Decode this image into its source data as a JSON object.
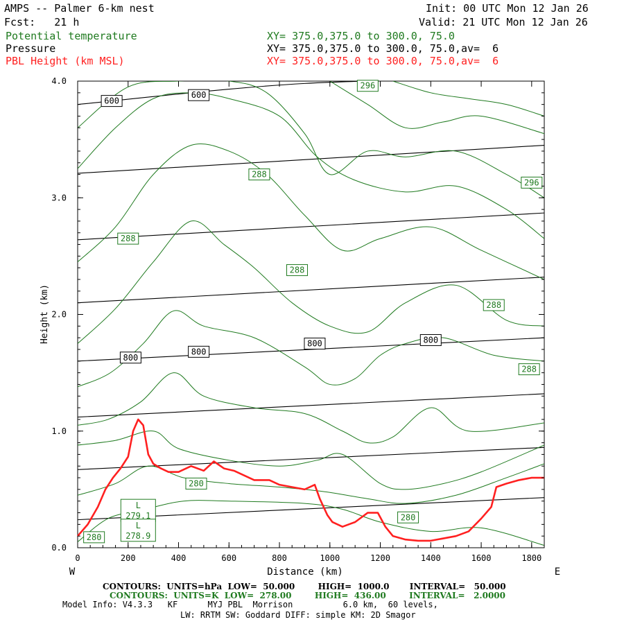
{
  "header": {
    "title": "AMPS -- Palmer 6-km nest",
    "init": "Init: 00 UTC Mon 12 Jan 26",
    "fcst": "Fcst:   21 h",
    "valid": "Valid: 21 UTC Mon 12 Jan 26",
    "field1_name": "Potential temperature",
    "field1_xy": "XY= 375.0,375.0 to 300.0, 75.0",
    "field2_name": "Pressure",
    "field2_xy": "XY= 375.0,375.0 to 300.0, 75.0,av=  6",
    "field3_name": "PBL Height (km MSL)",
    "field3_xy": "XY= 375.0,375.0 to 300.0, 75.0,av=  6"
  },
  "footer": {
    "contours_hpa": "CONTOURS:  UNITS=hPa  LOW=  50.000        HIGH=  1000.0       INTERVAL=   50.000",
    "contours_k": "CONTOURS:  UNITS=K  LOW=  278.00        HIGH=  436.00        INTERVAL=   2.0000",
    "model_info": "Model Info: V4.3.3   KF      MYJ PBL  Morrison          6.0 km,  60 levels,",
    "model_info2": "LW: RRTM SW: Goddard DIFF: simple KM: 2D Smagor"
  },
  "colors": {
    "theta": "#1f7a1f",
    "pressure": "#000000",
    "pbl": "#ff2020"
  },
  "chart_data": {
    "type": "line",
    "xlabel": "Distance (km)",
    "ylabel": "Height (km)",
    "xlim": [
      0,
      1850
    ],
    "ylim": [
      0,
      4
    ],
    "x_ticks": [
      "0",
      "200",
      "400",
      "600",
      "800",
      "1000",
      "1200",
      "1400",
      "1600",
      "1800"
    ],
    "y_ticks": [
      "0.0",
      "1.0",
      "2.0",
      "3.0",
      "4.0"
    ],
    "x_left_label": "W",
    "x_right_label": "E",
    "pressure_lines": [
      {
        "x": [
          0,
          1850
        ],
        "y": [
          0.24,
          0.43
        ]
      },
      {
        "x": [
          0,
          1850
        ],
        "y": [
          0.67,
          0.86
        ]
      },
      {
        "x": [
          0,
          1850
        ],
        "y": [
          1.12,
          1.32
        ]
      },
      {
        "x": [
          0,
          1850
        ],
        "y": [
          1.6,
          1.8
        ],
        "labels": [
          {
            "x": 210,
            "y": 1.63,
            "text": "800"
          },
          {
            "x": 480,
            "y": 1.68,
            "text": "800"
          },
          {
            "x": 940,
            "y": 1.75,
            "text": "800"
          },
          {
            "x": 1400,
            "y": 1.78,
            "text": "800"
          }
        ]
      },
      {
        "x": [
          0,
          1850
        ],
        "y": [
          2.1,
          2.32
        ]
      },
      {
        "x": [
          0,
          1850
        ],
        "y": [
          2.64,
          2.87
        ]
      },
      {
        "x": [
          0,
          1850
        ],
        "y": [
          3.21,
          3.45
        ]
      },
      {
        "x": [
          0,
          900,
          1850
        ],
        "y": [
          3.8,
          3.98,
          4.02
        ],
        "labels": [
          {
            "x": 135,
            "y": 3.83,
            "text": "600"
          },
          {
            "x": 480,
            "y": 3.88,
            "text": "600"
          }
        ]
      }
    ],
    "theta_lines": [
      {
        "x": [
          0,
          120,
          250,
          420,
          600,
          900,
          1050,
          1200,
          1400,
          1600,
          1850
        ],
        "y": [
          0.05,
          0.25,
          0.32,
          0.4,
          0.4,
          0.38,
          0.33,
          0.22,
          0.14,
          0.17,
          0.02
        ],
        "labels": [
          {
            "x": 65,
            "y": 0.09,
            "text": "280"
          },
          {
            "x": 1310,
            "y": 0.26,
            "text": "280"
          }
        ]
      },
      {
        "x": [
          0,
          150,
          280,
          420,
          600,
          800,
          980,
          1150,
          1300,
          1500,
          1700,
          1850
        ],
        "y": [
          0.45,
          0.55,
          0.7,
          0.6,
          0.55,
          0.52,
          0.48,
          0.42,
          0.38,
          0.45,
          0.6,
          0.72
        ],
        "labels": [
          {
            "x": 470,
            "y": 0.55,
            "text": "280"
          }
        ]
      },
      {
        "x": [
          0,
          150,
          300,
          400,
          600,
          800,
          950,
          1050,
          1200,
          1300,
          1450,
          1600,
          1850
        ],
        "y": [
          0.88,
          0.92,
          1.0,
          0.85,
          0.75,
          0.7,
          0.75,
          0.8,
          0.55,
          0.5,
          0.55,
          0.65,
          0.88
        ]
      },
      {
        "x": [
          0,
          120,
          250,
          380,
          500,
          700,
          900,
          1050,
          1150,
          1250,
          1400,
          1550,
          1850
        ],
        "y": [
          1.05,
          1.1,
          1.25,
          1.5,
          1.3,
          1.2,
          1.15,
          1.0,
          0.9,
          0.95,
          1.2,
          1.0,
          1.07
        ]
      },
      {
        "x": [
          0,
          130,
          260,
          380,
          500,
          700,
          900,
          1000,
          1100,
          1200,
          1300,
          1450,
          1650,
          1850
        ],
        "y": [
          1.38,
          1.5,
          1.75,
          2.03,
          1.9,
          1.8,
          1.55,
          1.4,
          1.45,
          1.65,
          1.75,
          1.8,
          1.65,
          1.6
        ]
      },
      {
        "x": [
          0,
          150,
          300,
          450,
          580,
          700,
          850,
          1000,
          1150,
          1300,
          1500,
          1700,
          1850
        ],
        "y": [
          1.75,
          2.05,
          2.45,
          2.8,
          2.6,
          2.4,
          2.1,
          1.9,
          1.85,
          2.1,
          2.25,
          1.95,
          1.9
        ],
        "labels": [
          {
            "x": 870,
            "y": 2.38,
            "text": "288"
          },
          {
            "x": 1650,
            "y": 2.08,
            "text": "288"
          },
          {
            "x": 1790,
            "y": 1.53,
            "text": "288"
          }
        ]
      },
      {
        "x": [
          0,
          150,
          300,
          450,
          600,
          750,
          900,
          1050,
          1200,
          1400,
          1600,
          1850
        ],
        "y": [
          2.45,
          2.75,
          3.2,
          3.45,
          3.4,
          3.2,
          2.85,
          2.55,
          2.65,
          2.75,
          2.55,
          2.3
        ],
        "labels": [
          {
            "x": 200,
            "y": 2.65,
            "text": "288"
          }
        ]
      },
      {
        "x": [
          0,
          150,
          300,
          450,
          600,
          800,
          950,
          1100,
          1300,
          1500,
          1700,
          1850
        ],
        "y": [
          3.25,
          3.6,
          3.85,
          3.9,
          3.85,
          3.7,
          3.35,
          3.15,
          3.05,
          3.1,
          2.9,
          2.65
        ]
      },
      {
        "x": [
          0,
          200,
          400,
          600,
          750,
          900,
          1000,
          1150,
          1300,
          1500,
          1700,
          1850
        ],
        "y": [
          3.6,
          3.95,
          4.0,
          4.0,
          3.9,
          3.55,
          3.2,
          3.4,
          3.35,
          3.4,
          3.2,
          3.0
        ],
        "labels": [
          {
            "x": 720,
            "y": 3.2,
            "text": "288"
          },
          {
            "x": 1800,
            "y": 3.13,
            "text": "296"
          }
        ]
      },
      {
        "x": [
          1000,
          1150,
          1300,
          1450,
          1600,
          1850
        ],
        "y": [
          4.0,
          3.8,
          3.6,
          3.65,
          3.7,
          3.55
        ]
      },
      {
        "x": [
          1250,
          1400,
          1550,
          1700,
          1850
        ],
        "y": [
          4.0,
          3.9,
          3.85,
          3.8,
          3.7
        ],
        "labels": [
          {
            "x": 1150,
            "y": 3.96,
            "text": "296"
          }
        ]
      }
    ],
    "pbl_height": {
      "x": [
        0,
        40,
        80,
        110,
        140,
        170,
        200,
        220,
        240,
        260,
        280,
        300,
        330,
        360,
        400,
        450,
        500,
        540,
        580,
        620,
        660,
        700,
        760,
        800,
        850,
        900,
        940,
        960,
        990,
        1010,
        1050,
        1100,
        1150,
        1190,
        1220,
        1250,
        1300,
        1350,
        1400,
        1450,
        1500,
        1550,
        1600,
        1640,
        1660,
        1700,
        1750,
        1800,
        1850
      ],
      "y": [
        0.1,
        0.2,
        0.35,
        0.5,
        0.6,
        0.68,
        0.78,
        1.0,
        1.1,
        1.05,
        0.8,
        0.72,
        0.68,
        0.65,
        0.65,
        0.7,
        0.66,
        0.74,
        0.68,
        0.66,
        0.62,
        0.58,
        0.58,
        0.54,
        0.52,
        0.5,
        0.54,
        0.42,
        0.28,
        0.22,
        0.18,
        0.22,
        0.3,
        0.3,
        0.18,
        0.1,
        0.07,
        0.06,
        0.06,
        0.08,
        0.1,
        0.14,
        0.25,
        0.35,
        0.52,
        0.55,
        0.58,
        0.6,
        0.6
      ]
    },
    "annotations": [
      {
        "x": 240,
        "y": 0.32,
        "text": "L",
        "value": "279.1"
      },
      {
        "x": 240,
        "y": 0.15,
        "text": "L",
        "value": "278.9"
      }
    ]
  }
}
